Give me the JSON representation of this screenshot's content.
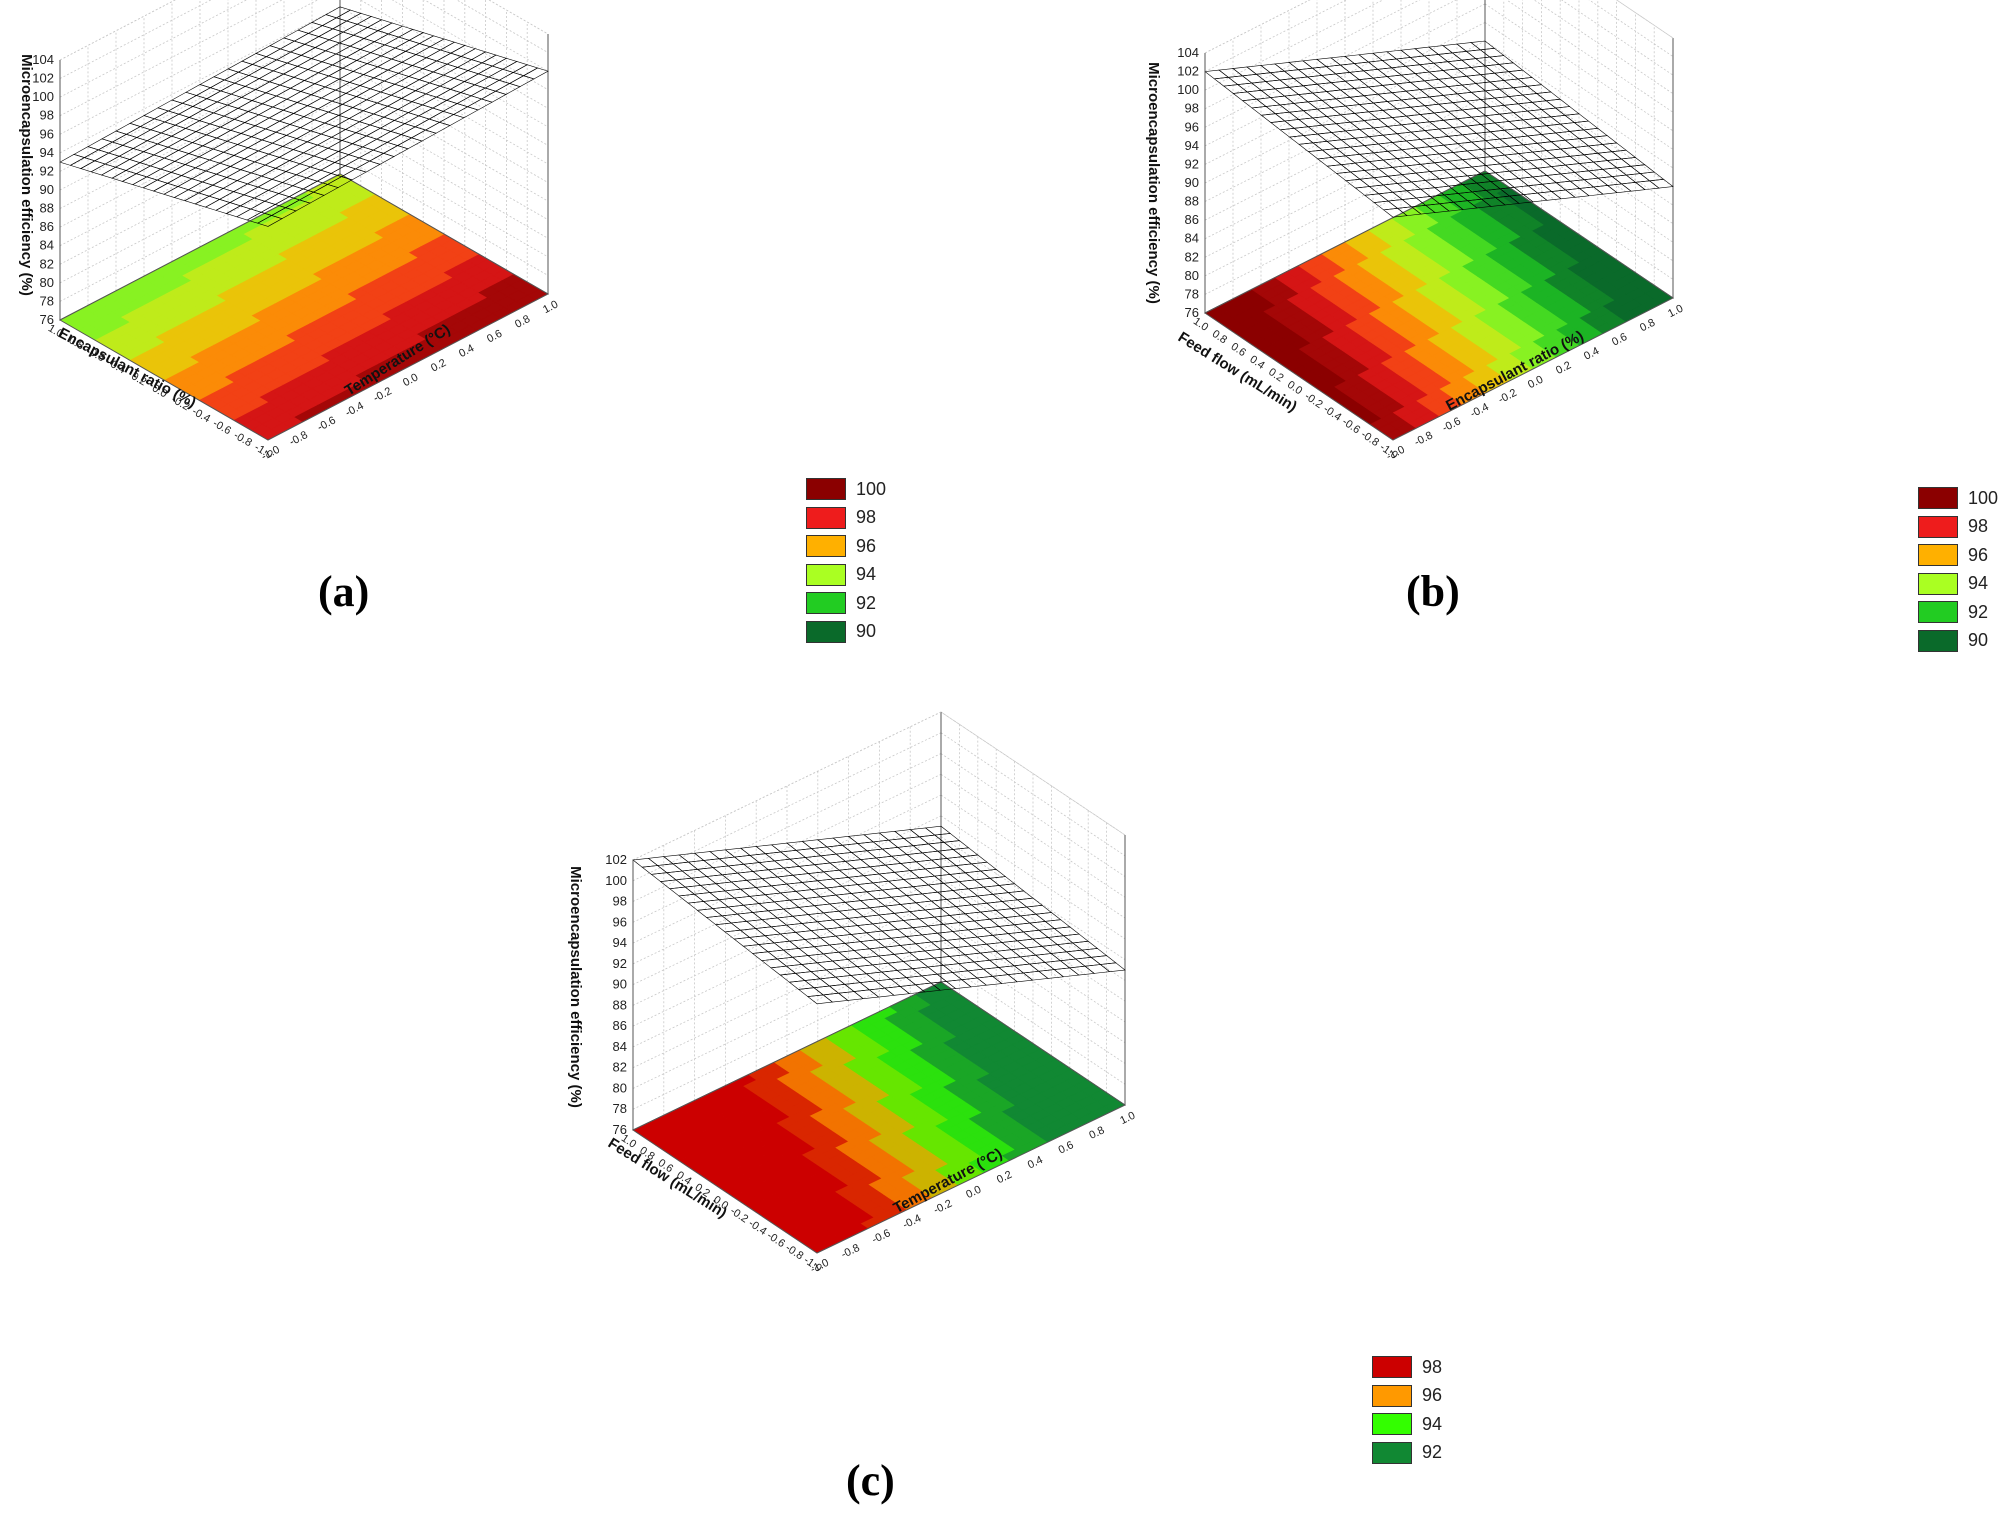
{
  "chart_data": [
    {
      "type": "surface",
      "panel_label": "(a)",
      "xlabel": "Temperature (°C)",
      "ylabel": "Encapsulant ratio (%)",
      "zlabel": "Microencapsulation efficiency (%)",
      "x_ticks": [
        "-1.0",
        "-0.8",
        "-0.6",
        "-0.4",
        "-0.2",
        "0.0",
        "0.2",
        "0.4",
        "0.6",
        "0.8",
        "1.0"
      ],
      "y_ticks": [
        "-1.0",
        "-0.8",
        "-0.6",
        "-0.4",
        "-0.2",
        "0.0",
        "0.2",
        "0.4",
        "0.6",
        "0.8",
        "1.0"
      ],
      "z_ticks": [
        "76",
        "78",
        "80",
        "82",
        "84",
        "86",
        "88",
        "90",
        "92",
        "94",
        "96",
        "98",
        "100",
        "102",
        "104"
      ],
      "xlim": [
        -1,
        1
      ],
      "ylim": [
        -1,
        1
      ],
      "zlim": [
        76,
        104
      ],
      "surface": {
        "intercept": 96.5,
        "coef_x": 0.5,
        "coef_y": -3.0
      },
      "legend": [
        {
          "label": "100",
          "color": "#8b0000"
        },
        {
          "label": "98",
          "color": "#ee1c1c"
        },
        {
          "label": "96",
          "color": "#ffb000"
        },
        {
          "label": "94",
          "color": "#aaff22"
        },
        {
          "label": "92",
          "color": "#22cc22"
        },
        {
          "label": "90",
          "color": "#0a6a2a"
        }
      ]
    },
    {
      "type": "surface",
      "panel_label": "(b)",
      "xlabel": "Encapsulant ratio (%)",
      "ylabel": "Feed flow (mL/min)",
      "zlabel": "Microencapsulation efficiency (%)",
      "x_ticks": [
        "-1.0",
        "-0.8",
        "-0.6",
        "-0.4",
        "-0.2",
        "0.0",
        "0.2",
        "0.4",
        "0.6",
        "0.8",
        "1.0"
      ],
      "y_ticks": [
        "-1.0",
        "-0.8",
        "-0.6",
        "-0.4",
        "-0.2",
        "0.0",
        "0.2",
        "0.4",
        "0.6",
        "0.8",
        "1.0"
      ],
      "z_ticks": [
        "76",
        "78",
        "80",
        "82",
        "84",
        "86",
        "88",
        "90",
        "92",
        "94",
        "96",
        "98",
        "100",
        "102",
        "104"
      ],
      "xlim": [
        -1,
        1
      ],
      "ylim": [
        -1,
        1
      ],
      "zlim": [
        76,
        104
      ],
      "surface": {
        "intercept": 95.0,
        "coef_x": -6.0,
        "coef_y": 1.0
      },
      "legend": [
        {
          "label": "100",
          "color": "#8b0000"
        },
        {
          "label": "98",
          "color": "#ee1c1c"
        },
        {
          "label": "96",
          "color": "#ffb000"
        },
        {
          "label": "94",
          "color": "#aaff22"
        },
        {
          "label": "92",
          "color": "#22cc22"
        },
        {
          "label": "90",
          "color": "#0a6a2a"
        }
      ]
    },
    {
      "type": "surface",
      "panel_label": "(c)",
      "xlabel": "Temperature (°C)",
      "ylabel": "Feed flow (mL/min)",
      "zlabel": "Microencapsulation efficiency (%)",
      "x_ticks": [
        "-1.0",
        "-0.8",
        "-0.6",
        "-0.4",
        "-0.2",
        "0.0",
        "0.2",
        "0.4",
        "0.6",
        "0.8",
        "1.0"
      ],
      "y_ticks": [
        "-1.0",
        "-0.8",
        "-0.6",
        "-0.4",
        "-0.2",
        "0.0",
        "0.2",
        "0.4",
        "0.6",
        "0.8",
        "1.0"
      ],
      "z_ticks": [
        "76",
        "78",
        "80",
        "82",
        "84",
        "86",
        "88",
        "90",
        "92",
        "94",
        "96",
        "98",
        "100",
        "102"
      ],
      "xlim": [
        -1,
        1
      ],
      "ylim": [
        -1,
        1
      ],
      "zlim": [
        76,
        102
      ],
      "surface": {
        "intercept": 95.5,
        "coef_x": -5.5,
        "coef_y": 1.0
      },
      "legend": [
        {
          "label": "98",
          "color": "#cc0000"
        },
        {
          "label": "96",
          "color": "#ff9900"
        },
        {
          "label": "94",
          "color": "#33ff00"
        },
        {
          "label": "92",
          "color": "#118833"
        }
      ]
    }
  ]
}
